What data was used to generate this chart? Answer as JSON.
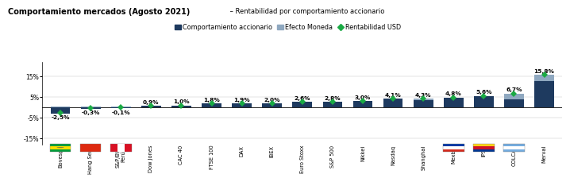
{
  "title_bold": "Comportamiento mercados (Agosto 2021)",
  "title_normal": " – Rentabilidad por comportamiento accionario",
  "categories": [
    "Bovespa",
    "Hang Seng",
    "S&P/BVL\nPerú",
    "Dow Jones",
    "CAC 40",
    "FTSE 100",
    "DAX",
    "IBEX",
    "Euro Stoxx",
    "S&P 500",
    "Nikkei",
    "Nasdaq",
    "Shanghai",
    "Mexbol",
    "IPSA",
    "COLCAP",
    "Merval"
  ],
  "rentabilidad_usd": [
    -2.5,
    -0.3,
    -0.1,
    0.9,
    1.0,
    1.8,
    1.9,
    2.0,
    2.6,
    2.8,
    3.0,
    4.1,
    4.3,
    4.8,
    5.6,
    6.7,
    15.8
  ],
  "comportamiento": [
    -3.0,
    -0.6,
    -0.4,
    0.9,
    1.0,
    1.8,
    1.9,
    2.0,
    2.6,
    2.8,
    3.0,
    4.1,
    3.5,
    4.8,
    5.6,
    3.8,
    12.8
  ],
  "efecto_moneda": [
    0.5,
    0.3,
    0.3,
    0.0,
    0.0,
    0.0,
    0.0,
    0.0,
    0.0,
    0.0,
    0.0,
    0.0,
    0.8,
    0.0,
    0.0,
    2.9,
    3.0
  ],
  "bar_color_dark": "#1e3a5f",
  "bar_color_light": "#8fa8c0",
  "diamond_color": "#1aaa44",
  "ylim": [
    -18,
    22
  ],
  "yticks": [
    -15,
    -5,
    5,
    15
  ],
  "ytick_labels": [
    "-15%",
    "-5%",
    "5%",
    "15%"
  ],
  "legend_labels": [
    "Comportamiento accionario",
    "Efecto Moneda",
    "Rentabilidad USD"
  ]
}
